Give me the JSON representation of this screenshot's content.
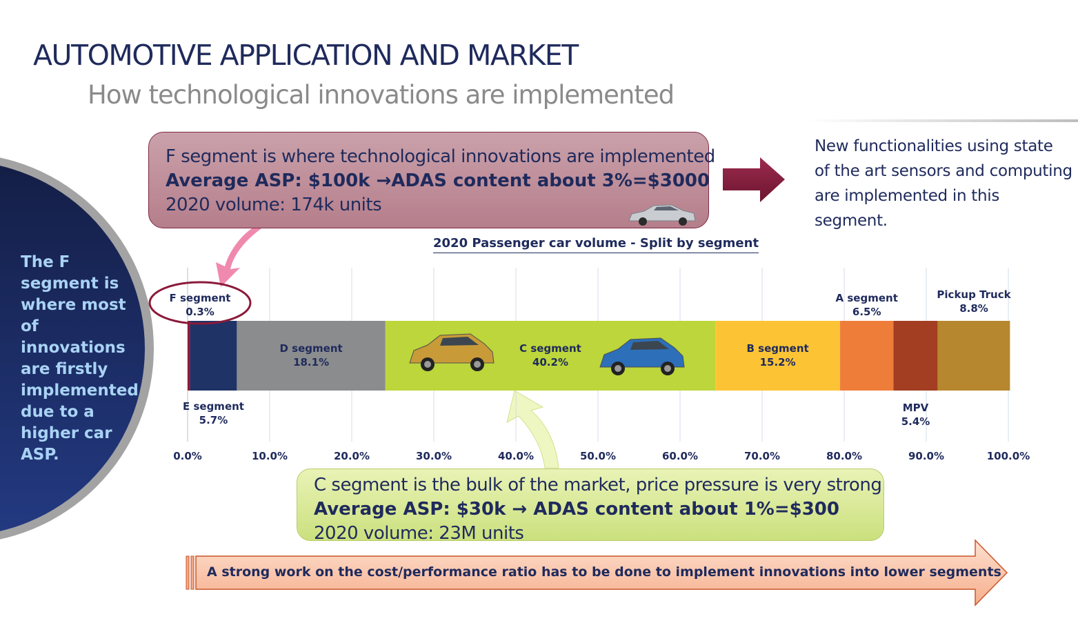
{
  "title": "AUTOMOTIVE APPLICATION AND MARKET",
  "subtitle": "How technological innovations are implemented",
  "f_box": {
    "line1": "F segment is where technological innovations are implemented",
    "line2": "Average ASP: $100k →ADAS content about 3%=$3000",
    "line3": "2020 volume: 174k units"
  },
  "c_box": {
    "line1": "C segment is the bulk of the market, price pressure is very strong",
    "line2": "Average ASP: $30k → ADAS content about 1%=$300",
    "line3": "2020 volume: 23M units"
  },
  "right_text": {
    "line1": "New functionalities using state",
    "line2": "of the art sensors and computing",
    "line3": "are implemented in this segment."
  },
  "left_text": "The F segment is where most of innovations are firstly implemented due to a higher car ASP.",
  "bottom_text": "A strong work on the cost/performance ratio has to be done to implement innovations into lower segments",
  "colors": {
    "navy": "#1f2a5c",
    "f_segment": "#8b1a3a",
    "e_segment": "#1f3366",
    "d_segment": "#8a8c8e",
    "c_segment": "#bcd63b",
    "b_segment": "#fcc434",
    "a_segment": "#ef7d3a",
    "mpv": "#a33e22",
    "pickup": "#b6872e"
  },
  "chart_data": {
    "type": "bar",
    "orientation": "horizontal-stacked-100",
    "title": "2020 Passenger car volume - Split by segment",
    "x_ticks": [
      "0.0%",
      "10.0%",
      "20.0%",
      "30.0%",
      "40.0%",
      "50.0%",
      "60.0%",
      "70.0%",
      "80.0%",
      "90.0%",
      "100.0%"
    ],
    "xlim": [
      0,
      100
    ],
    "grid": true,
    "series": [
      {
        "name": "F segment",
        "value": 0.3,
        "label": "0.3%",
        "color": "#8b1a3a"
      },
      {
        "name": "E segment",
        "value": 5.7,
        "label": "5.7%",
        "color": "#1f3366"
      },
      {
        "name": "D segment",
        "value": 18.1,
        "label": "18.1%",
        "color": "#8a8c8e"
      },
      {
        "name": "C segment",
        "value": 40.2,
        "label": "40.2%",
        "color": "#bcd63b"
      },
      {
        "name": "B segment",
        "value": 15.2,
        "label": "15.2%",
        "color": "#fcc434"
      },
      {
        "name": "A segment",
        "value": 6.5,
        "label": "6.5%",
        "color": "#ef7d3a"
      },
      {
        "name": "MPV",
        "value": 5.4,
        "label": "5.4%",
        "color": "#a33e22"
      },
      {
        "name": "Pickup Truck",
        "value": 8.8,
        "label": "8.8%",
        "color": "#b6872e"
      }
    ]
  }
}
